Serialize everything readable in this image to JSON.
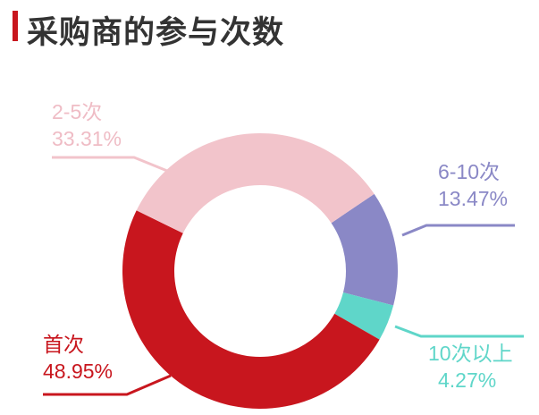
{
  "chart_data": {
    "type": "pie",
    "donut": true,
    "title": "采购商的参与次数",
    "slices": [
      {
        "label": "6-10次",
        "value": 13.47,
        "display": "13.47%",
        "color": "#8a88c6"
      },
      {
        "label": "10次以上",
        "value": 4.27,
        "display": "4.27%",
        "color": "#5fd6c9"
      },
      {
        "label": "首次",
        "value": 48.95,
        "display": "48.95%",
        "color": "#c8161e"
      },
      {
        "label": "2-5次",
        "value": 33.31,
        "display": "33.31%",
        "color": "#f2c4cb"
      }
    ],
    "accent_color": "#c8161e"
  }
}
